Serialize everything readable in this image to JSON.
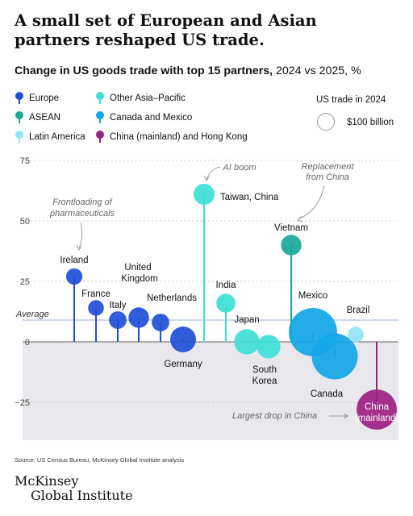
{
  "headline": "A small set of European and Asian partners reshaped US trade.",
  "subtitle": {
    "bold": "Change in US goods trade with top 15 partners,",
    "rest": " 2024 vs 2025, %"
  },
  "legend": [
    {
      "name": "Europe",
      "color": "#1f4fd8"
    },
    {
      "name": "Other Asia–Pacific",
      "color": "#3ee0d6"
    },
    {
      "name": "ASEAN",
      "color": "#17a89a"
    },
    {
      "name": "Canada and Mexico",
      "color": "#12a6e8"
    },
    {
      "name": "Latin America",
      "color": "#8fe3f7"
    },
    {
      "name": "China (mainland) and Hong Kong",
      "color": "#9c1f82"
    }
  ],
  "size_key": {
    "title": "US trade in 2024",
    "label": "$100 billion"
  },
  "chart_data": {
    "type": "scatter",
    "ylim": [
      -30,
      80
    ],
    "yticks": [
      -25,
      0,
      25,
      50,
      75
    ],
    "average": 9,
    "average_label": "Average",
    "points": [
      {
        "label": "Ireland",
        "region": "Europe",
        "change": 27,
        "trade_bn": 95
      },
      {
        "label": "France",
        "region": "Europe",
        "change": 14,
        "trade_bn": 90
      },
      {
        "label": "Italy",
        "region": "Europe",
        "change": 9,
        "trade_bn": 110
      },
      {
        "label": "United Kingdom",
        "region": "Europe",
        "change": 10,
        "trade_bn": 150
      },
      {
        "label": "Netherlands",
        "region": "Europe",
        "change": 8,
        "trade_bn": 110
      },
      {
        "label": "Germany",
        "region": "Europe",
        "change": 1,
        "trade_bn": 240
      },
      {
        "label": "Taiwan, China",
        "region": "Other Asia–Pacific",
        "change": 61,
        "trade_bn": 160
      },
      {
        "label": "India",
        "region": "Other Asia–Pacific",
        "change": 16,
        "trade_bn": 130
      },
      {
        "label": "Japan",
        "region": "Other Asia–Pacific",
        "change": 0,
        "trade_bn": 230
      },
      {
        "label": "South Korea",
        "region": "Other Asia–Pacific",
        "change": -2,
        "trade_bn": 200
      },
      {
        "label": "Vietnam",
        "region": "ASEAN",
        "change": 40,
        "trade_bn": 150
      },
      {
        "label": "Mexico",
        "region": "Canada and Mexico",
        "change": 4,
        "trade_bn": 840
      },
      {
        "label": "Canada",
        "region": "Canada and Mexico",
        "change": -6,
        "trade_bn": 760
      },
      {
        "label": "Brazil",
        "region": "Latin America",
        "change": 3,
        "trade_bn": 90
      },
      {
        "label": "China (mainland)",
        "region": "China (mainland) and Hong Kong",
        "change": -28,
        "trade_bn": 580
      }
    ],
    "annotations": [
      {
        "text": "Frontloading of pharmaceuticals",
        "target": "Ireland"
      },
      {
        "text": "AI boom",
        "target": "Taiwan, China"
      },
      {
        "text": "Replacement from China",
        "target": "Vietnam"
      },
      {
        "text": "Largest drop in China",
        "target": "China (mainland)"
      }
    ]
  },
  "source": "Source: US Census Bureau, McKinsey Global Institute analysis",
  "logo": {
    "line1": "McKinsey",
    "line2": "Global Institute"
  }
}
